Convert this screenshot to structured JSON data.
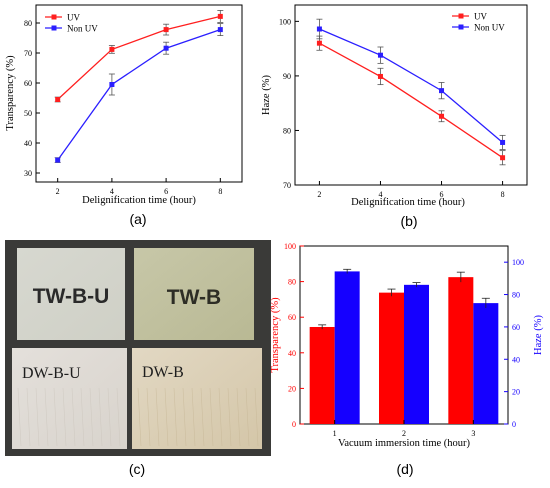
{
  "panel_labels": [
    "(a)",
    "(b)",
    "(c)",
    "(d)"
  ],
  "colors": {
    "uv": "#ff1f1f",
    "non_uv": "#2b1fff",
    "bar_red": "#ff0000",
    "bar_blue": "#1500ff",
    "axis": "#000000"
  },
  "photos": {
    "tw_b_u": "TW-B-U",
    "tw_b": "TW-B",
    "dw_b_u": "DW-B-U",
    "dw_b": "DW-B"
  },
  "chart_data": [
    {
      "type": "line",
      "panel": "(a)",
      "title": "",
      "xlabel": "Delignification time (hour)",
      "ylabel": "Transparency (%)",
      "x": [
        2,
        4,
        6,
        8
      ],
      "xlim": [
        1.2,
        8.8
      ],
      "ylim": [
        27,
        86
      ],
      "xticks": [
        "2",
        "4",
        "6",
        "8"
      ],
      "yticks": [
        "30",
        "40",
        "50",
        "60",
        "70",
        "80"
      ],
      "legend": "top-left",
      "grid": false,
      "series": [
        {
          "name": "UV",
          "color": "#ff1f1f",
          "values": [
            54.5,
            71.2,
            77.8,
            82.2
          ],
          "errors": [
            0.8,
            1.3,
            1.8,
            2.0
          ]
        },
        {
          "name": "Non UV",
          "color": "#2b1fff",
          "values": [
            34.3,
            59.5,
            71.6,
            77.8
          ],
          "errors": [
            0.8,
            3.5,
            2.0,
            2.0
          ]
        }
      ]
    },
    {
      "type": "line",
      "panel": "(b)",
      "title": "",
      "xlabel": "Delignification time (hour)",
      "ylabel": "Haze (%)",
      "x": [
        2,
        4,
        6,
        8
      ],
      "xlim": [
        1.2,
        8.8
      ],
      "ylim": [
        70,
        103
      ],
      "xticks": [
        "2",
        "4",
        "6",
        "8"
      ],
      "yticks": [
        "70",
        "80",
        "90",
        "100"
      ],
      "legend": "top-right",
      "grid": false,
      "series": [
        {
          "name": "UV",
          "color": "#ff1f1f",
          "values": [
            96.0,
            89.9,
            82.6,
            75.0
          ],
          "errors": [
            1.3,
            1.5,
            1.0,
            1.3
          ]
        },
        {
          "name": "Non UV",
          "color": "#2b1fff",
          "values": [
            98.6,
            93.8,
            87.3,
            77.8
          ],
          "errors": [
            1.8,
            1.5,
            1.5,
            1.3
          ]
        }
      ]
    },
    {
      "type": "bar",
      "panel": "(d)",
      "title": "",
      "xlabel": "Vacuum immersion time (hour)",
      "ylabel": "Transparency (%)",
      "ylabel_right": "Haze (%)",
      "categories": [
        "1",
        "2",
        "3"
      ],
      "ylim": [
        0,
        100
      ],
      "ylim_right": [
        0,
        110
      ],
      "yticks": [
        "0",
        "20",
        "40",
        "60",
        "80",
        "100"
      ],
      "yticks_right": [
        "0",
        "20",
        "40",
        "60",
        "80",
        "100"
      ],
      "grid": false,
      "series": [
        {
          "axis": "left",
          "color": "#ff0000",
          "values": [
            54.5,
            73.8,
            82.5
          ],
          "errors": [
            1.2,
            2.0,
            2.8
          ]
        },
        {
          "axis": "right",
          "color": "#1500ff",
          "values": [
            94.3,
            86.0,
            74.7
          ],
          "errors": [
            1.3,
            1.4,
            3.0
          ]
        }
      ]
    }
  ]
}
